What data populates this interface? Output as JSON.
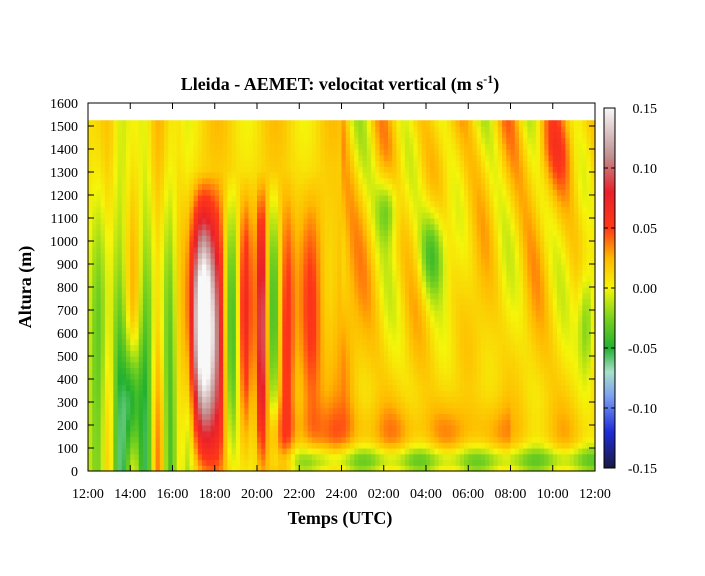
{
  "chart_data": {
    "type": "heatmap",
    "title": "Lleida - AEMET: velocitat vertical (m s",
    "title_superscript": "-1",
    "title_suffix": ")",
    "xlabel": "Temps (UTC)",
    "ylabel": "Altura (m)",
    "x_tick_labels": [
      "12:00",
      "14:00",
      "16:00",
      "18:00",
      "20:00",
      "22:00",
      "24:00",
      "02:00",
      "04:00",
      "06:00",
      "08:00",
      "10:00",
      "12:00"
    ],
    "x_range_hours": [
      0,
      24
    ],
    "y_ticks": [
      0,
      100,
      200,
      300,
      400,
      500,
      600,
      700,
      800,
      900,
      1000,
      1100,
      1200,
      1300,
      1400,
      1500,
      1600
    ],
    "ylim": [
      0,
      1600
    ],
    "data_top_altitude": 1525,
    "colorbar": {
      "ticks": [
        "0.15",
        "0.10",
        "0.05",
        "0.00",
        "-0.05",
        "-0.10",
        "-0.15"
      ],
      "range": [
        -0.15,
        0.15
      ],
      "colors": [
        {
          "value": -0.15,
          "color": "#1a1a40"
        },
        {
          "value": -0.12,
          "color": "#1f2bd8"
        },
        {
          "value": -0.09,
          "color": "#7da0f0"
        },
        {
          "value": -0.07,
          "color": "#a8e0c8"
        },
        {
          "value": -0.05,
          "color": "#22b030"
        },
        {
          "value": -0.025,
          "color": "#7ad21e"
        },
        {
          "value": 0.0,
          "color": "#f5f50a"
        },
        {
          "value": 0.025,
          "color": "#ffb800"
        },
        {
          "value": 0.05,
          "color": "#ff3818"
        },
        {
          "value": 0.08,
          "color": "#e8202a"
        },
        {
          "value": 0.11,
          "color": "#c09090"
        },
        {
          "value": 0.15,
          "color": "#f8f8f8"
        }
      ]
    },
    "grid": false
  }
}
